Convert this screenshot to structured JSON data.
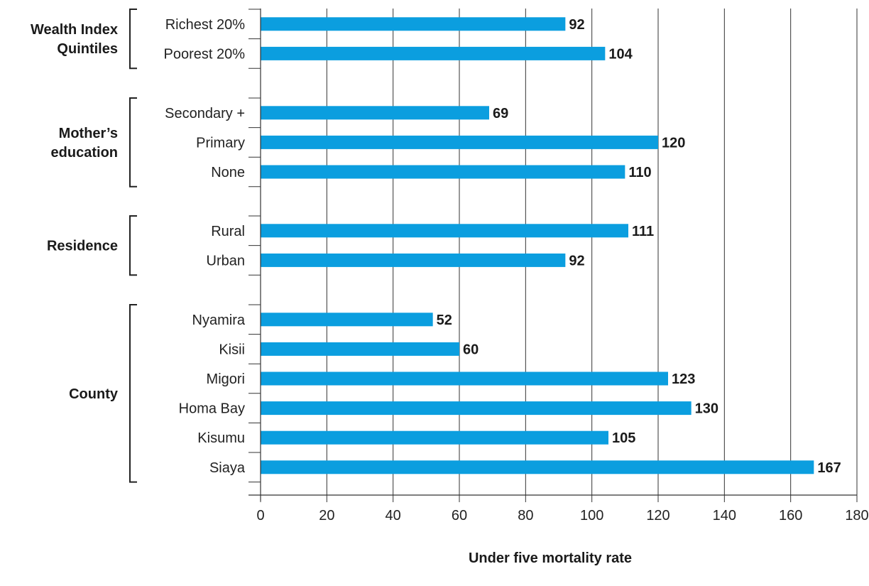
{
  "chart_data": {
    "type": "bar",
    "orientation": "horizontal",
    "xlabel": "Under five mortality rate",
    "xlim": [
      0,
      180
    ],
    "xticks": [
      0,
      20,
      40,
      60,
      80,
      100,
      120,
      140,
      160,
      180
    ],
    "grid": "vertical",
    "bar_color": "#0b9edf",
    "groups": [
      {
        "label": "Wealth Index Quintiles",
        "label_lines": [
          "Wealth  Index",
          "Quintiles"
        ],
        "items": [
          {
            "category": "Richest 20%",
            "value": 92
          },
          {
            "category": "Poorest 20%",
            "value": 104
          }
        ]
      },
      {
        "label": "Mother's education",
        "label_lines": [
          "Mother’s",
          "education"
        ],
        "items": [
          {
            "category": "Secondary +",
            "value": 69
          },
          {
            "category": "Primary",
            "value": 120
          },
          {
            "category": "None",
            "value": 110
          }
        ]
      },
      {
        "label": "Residence",
        "label_lines": [
          "Residence"
        ],
        "items": [
          {
            "category": "Rural",
            "value": 111
          },
          {
            "category": "Urban",
            "value": 92
          }
        ]
      },
      {
        "label": "County",
        "label_lines": [
          "County"
        ],
        "items": [
          {
            "category": "Nyamira",
            "value": 52
          },
          {
            "category": "Kisii",
            "value": 60
          },
          {
            "category": "Migori",
            "value": 123
          },
          {
            "category": "Homa Bay",
            "value": 130
          },
          {
            "category": "Kisumu",
            "value": 105
          },
          {
            "category": "Siaya",
            "value": 167
          }
        ]
      }
    ]
  }
}
